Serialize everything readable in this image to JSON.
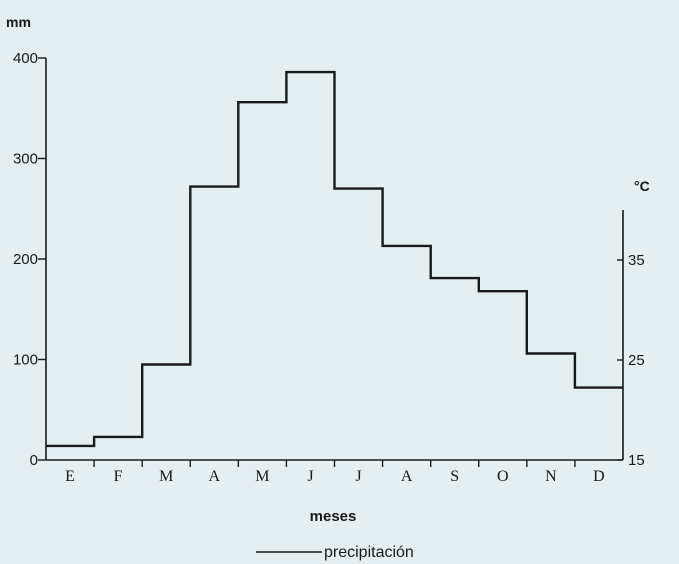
{
  "chart_data": {
    "type": "line",
    "step": true,
    "title": "",
    "xlabel": "meses",
    "ylabel": "mm",
    "ylabel_right": "°C",
    "categories": [
      "E",
      "F",
      "M",
      "A",
      "M",
      "J",
      "J",
      "A",
      "S",
      "O",
      "N",
      "D"
    ],
    "series": [
      {
        "name": "precipitación",
        "values": [
          14,
          23,
          95,
          272,
          356,
          386,
          270,
          213,
          181,
          168,
          106,
          72
        ]
      }
    ],
    "ylim": [
      0,
      400
    ],
    "yticks": [
      0,
      100,
      200,
      300,
      400
    ],
    "y2lim": [
      15,
      40
    ],
    "y2ticks": [
      15,
      25,
      35
    ],
    "grid": false,
    "legend": {
      "position": "bottom-center",
      "entries": [
        "precipitación"
      ]
    },
    "colors": {
      "axis": "#1a1a1a",
      "series": "#1a1a1a",
      "background": "#e5eef1"
    }
  }
}
